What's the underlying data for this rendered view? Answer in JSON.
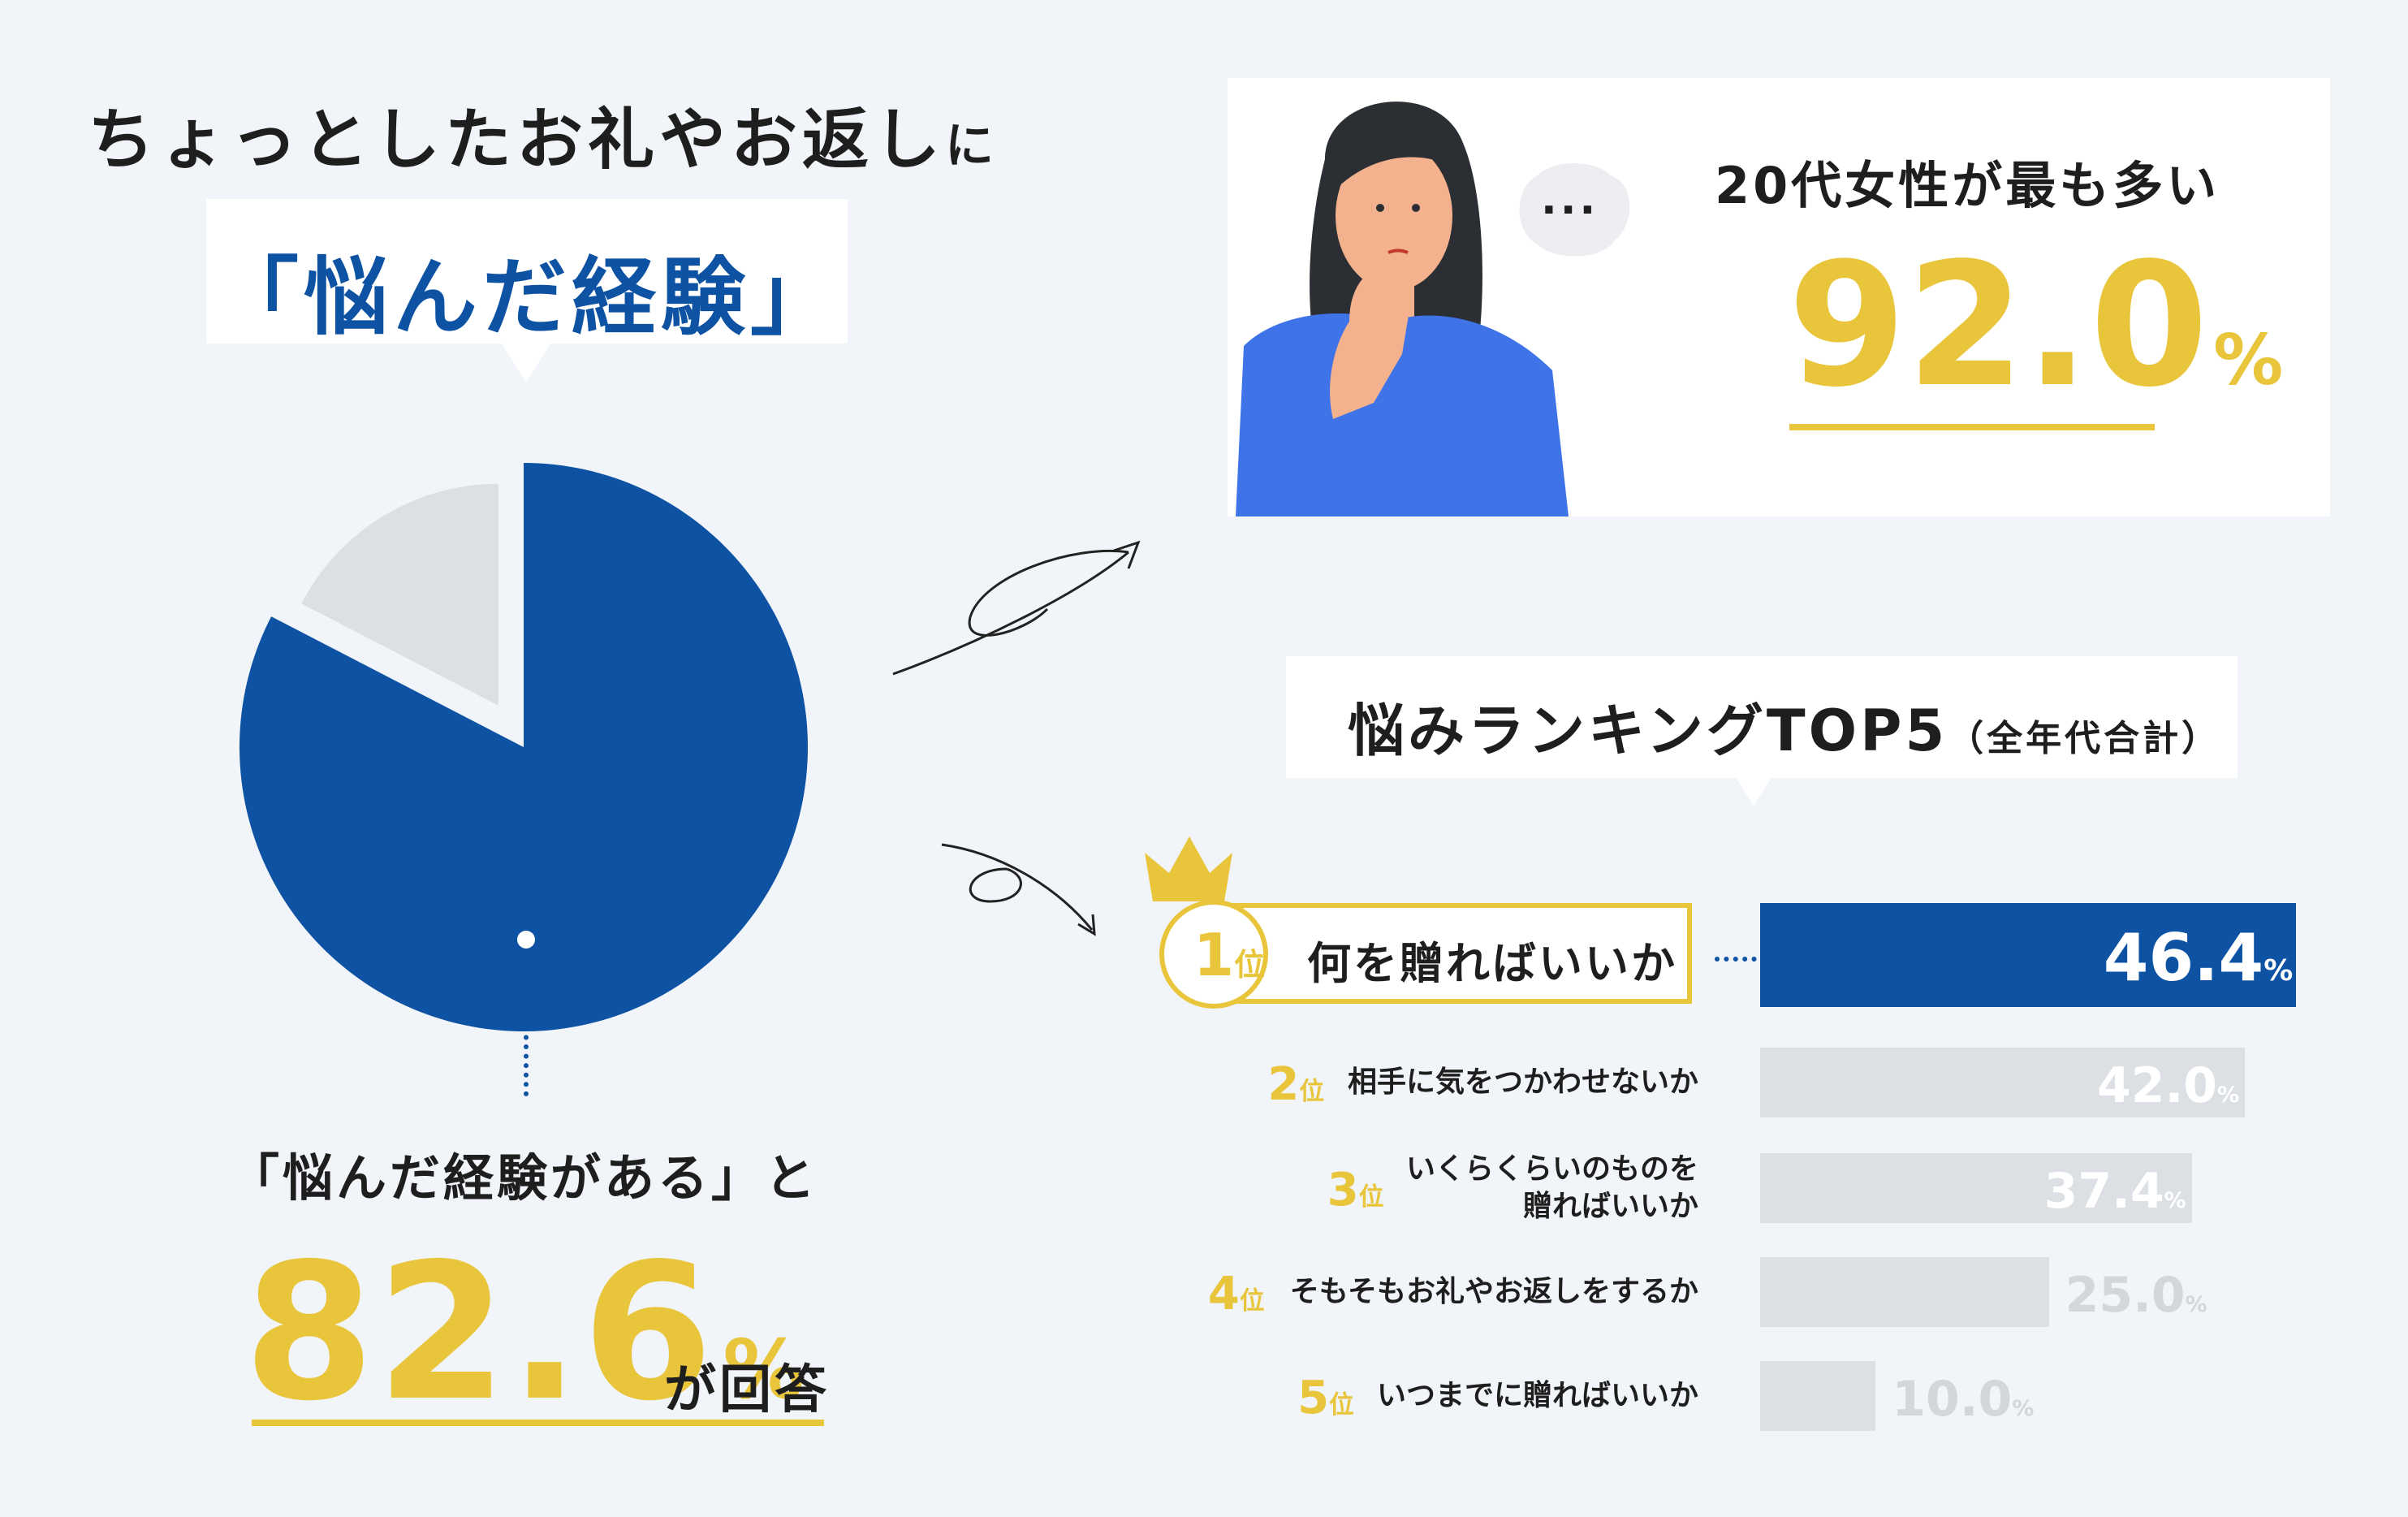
{
  "intro": {
    "line": "ちょっとしたお礼やお返し",
    "suffix": "に"
  },
  "callout": {
    "text": "「悩んだ経験」"
  },
  "left": {
    "label": "「悩んだ経験がある」と",
    "value": "82.6",
    "unit": "%",
    "suffix": "が回答"
  },
  "card": {
    "heading": "20代女性が最も多い",
    "value": "92.0",
    "unit": "%",
    "bubble": "..."
  },
  "ranking": {
    "title": "悩みランキングTOP5",
    "subtitle": "（全年代合計）",
    "rank_suffix": "位"
  },
  "chart_data": [
    {
      "type": "pie",
      "slices": [
        {
          "label": "悩んだ経験がある",
          "value": 82.6,
          "color": "#0d52a3"
        },
        {
          "label": "",
          "value": 17.4,
          "color": "#dcdfe4"
        }
      ]
    },
    {
      "type": "bar",
      "orientation": "horizontal",
      "categories": [
        "何を贈ればいいか",
        "相手に気をつかわせないか",
        "いくらくらいのものを贈ればいいか",
        "そもそもお礼やお返しをするか",
        "いつまでに贈ればいいか"
      ],
      "category_lines": [
        [
          "何を贈ればいいか"
        ],
        [
          "相手に気をつかわせないか"
        ],
        [
          "いくらくらいのものを",
          "贈ればいいか"
        ],
        [
          "そもそもお礼やお返しをするか"
        ],
        [
          "いつまでに贈ればいいか"
        ]
      ],
      "ranks": [
        "1",
        "2",
        "3",
        "4",
        "5"
      ],
      "values": [
        46.4,
        42.0,
        37.4,
        25.0,
        10.0
      ],
      "labels": [
        "46.4",
        "42.0",
        "37.4",
        "25.0",
        "10.0"
      ],
      "unit": "%",
      "colors": {
        "highlight": "#0d52a3",
        "normal": "#dcdfe4"
      }
    }
  ]
}
